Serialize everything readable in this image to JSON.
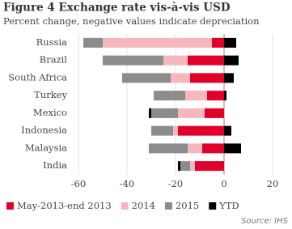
{
  "chart_data": {
    "type": "stacked-barh",
    "title": "Figure 4 Exchange rate vis-à-vis USD",
    "subtitle": "Percent change, negative values indicate depreciation",
    "source": "Source: IHS",
    "categories": [
      "Russia",
      "Brazil",
      "South Africa",
      "Turkey",
      "Mexico",
      "Indonesia",
      "Malaysia",
      "India"
    ],
    "series": [
      {
        "name": "May-2013-end 2013",
        "color": "#e0002a",
        "values": [
          -5,
          -15,
          -14,
          -7,
          -8,
          -19,
          -9,
          -12
        ]
      },
      {
        "name": "2014",
        "color": "#f5b8bc",
        "values": [
          -45,
          -10,
          -8,
          -9,
          -11,
          -2,
          -6,
          -2
        ]
      },
      {
        "name": "2015",
        "color": "#8c8c8c",
        "values": [
          -8,
          -25,
          -20,
          -13,
          -11,
          -9,
          -16,
          -4
        ]
      },
      {
        "name": "YTD",
        "color": "#000000",
        "values": [
          5,
          6,
          4,
          1,
          -1,
          3,
          7,
          -1
        ]
      }
    ],
    "xlim": [
      -60,
      20
    ],
    "xticks": [
      -60,
      -40,
      -20,
      0,
      20
    ],
    "grid": true
  }
}
